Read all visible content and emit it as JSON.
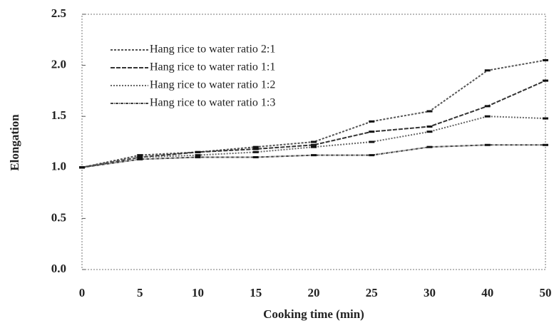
{
  "chart_data": {
    "type": "line",
    "x_label": "Cooking time (min)",
    "y_label": "Elongation",
    "categories": [
      "0",
      "5",
      "10",
      "15",
      "20",
      "25",
      "30",
      "40",
      "50"
    ],
    "series": [
      {
        "name": "Hang rice to water ratio 2:1",
        "color": "#555555",
        "values": [
          1.0,
          1.12,
          1.15,
          1.2,
          1.25,
          1.45,
          1.55,
          1.95,
          2.05
        ]
      },
      {
        "name": "Hang rice to water ratio 1:1",
        "color": "#333333",
        "values": [
          1.0,
          1.1,
          1.15,
          1.18,
          1.22,
          1.35,
          1.4,
          1.6,
          1.85
        ]
      },
      {
        "name": "Hang rice to water ratio 1:2",
        "color": "#666666",
        "values": [
          1.0,
          1.1,
          1.12,
          1.15,
          1.2,
          1.25,
          1.35,
          1.5,
          1.48
        ]
      },
      {
        "name": "Hang rice to water ratio 1:3",
        "color": "#444444",
        "values": [
          1.0,
          1.08,
          1.1,
          1.1,
          1.12,
          1.12,
          1.2,
          1.22,
          1.22
        ]
      }
    ],
    "ylim": [
      0,
      2.5
    ],
    "yticks": [
      {
        "value": 0,
        "label": "0.0"
      },
      0.5,
      {
        "value": 1,
        "label": "1.0"
      },
      1.5,
      {
        "value": 2,
        "label": "2.0"
      },
      2.5
    ],
    "legend": "upper left"
  }
}
